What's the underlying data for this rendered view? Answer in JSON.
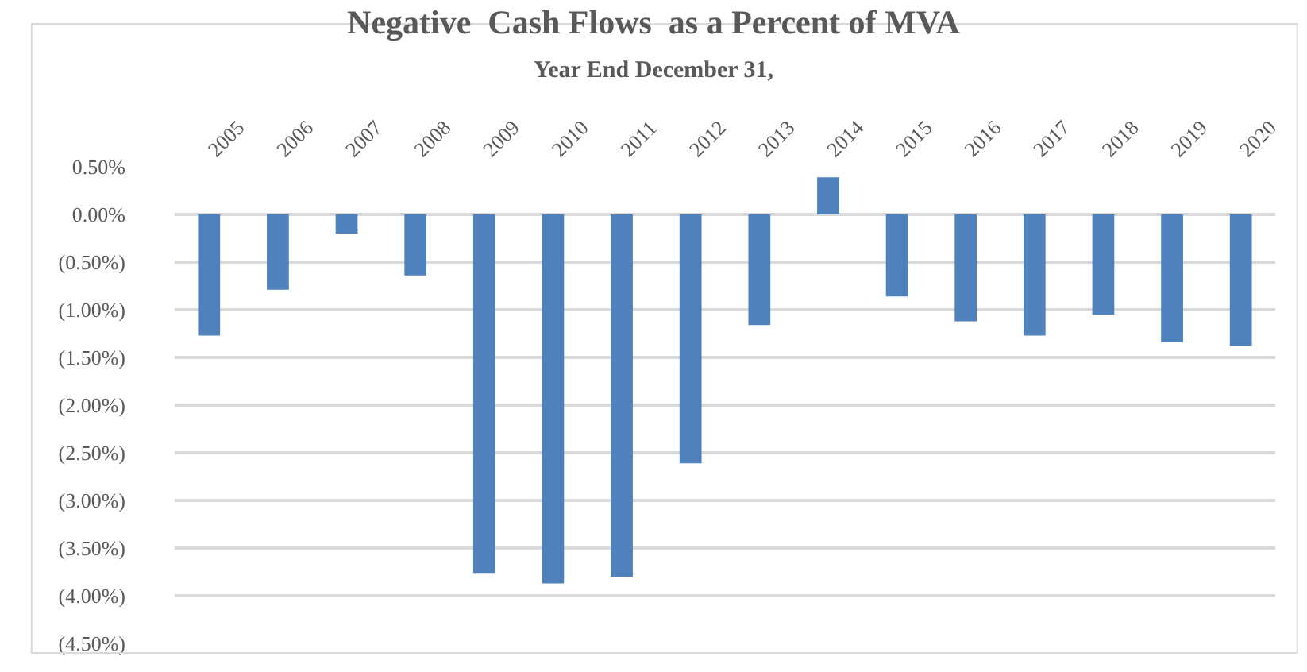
{
  "chart_data": {
    "type": "bar",
    "title": "Negative  Cash Flows  as a Percent of MVA",
    "subtitle": "Year End December 31,",
    "categories": [
      "2005",
      "2006",
      "2007",
      "2008",
      "2009",
      "2010",
      "2011",
      "2012",
      "2013",
      "2014",
      "2015",
      "2016",
      "2017",
      "2018",
      "2019",
      "2020"
    ],
    "values": [
      -1.27,
      -0.79,
      -0.2,
      -0.64,
      -3.76,
      -3.87,
      -3.8,
      -2.61,
      -1.16,
      0.39,
      -0.86,
      -1.12,
      -1.27,
      -1.05,
      -1.34,
      -1.38
    ],
    "color": "#4f81bd",
    "ylim": [
      -4.5,
      0.5
    ],
    "yticks": [
      {
        "value": 0.5,
        "label": "0.50%"
      },
      {
        "value": 0,
        "label": "0.00%"
      },
      {
        "value": -0.5,
        "label": "(0.50%)"
      },
      {
        "value": -1,
        "label": "(1.00%)"
      },
      {
        "value": -1.5,
        "label": "(1.50%)"
      },
      {
        "value": -2,
        "label": "(2.00%)"
      },
      {
        "value": -2.5,
        "label": "(2.50%)"
      },
      {
        "value": -3,
        "label": "(3.00%)"
      },
      {
        "value": -3.5,
        "label": "(3.50%)"
      },
      {
        "value": -4,
        "label": "(4.00%)"
      },
      {
        "value": -4.5,
        "label": "(4.50%)"
      }
    ],
    "grid": "y",
    "legend": false
  }
}
